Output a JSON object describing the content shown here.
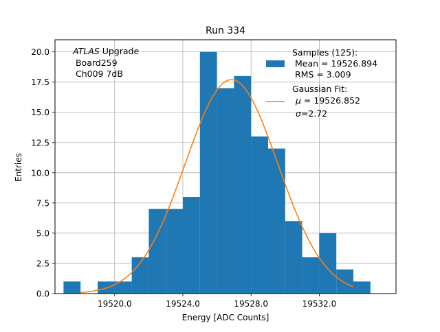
{
  "chart_data": {
    "type": "bar",
    "title": "Run 334",
    "xlabel": "Energy [ADC Counts]",
    "ylabel": "Entries",
    "xlim": [
      19516.5,
      19536.5
    ],
    "ylim": [
      0,
      21
    ],
    "grid": true,
    "x_ticks": [
      {
        "value": 19520,
        "label": "19520.0"
      },
      {
        "value": 19524,
        "label": "19524.0"
      },
      {
        "value": 19528,
        "label": "19528.0"
      },
      {
        "value": 19532,
        "label": "19532.0"
      }
    ],
    "y_ticks": [
      {
        "value": 0,
        "label": "0.0"
      },
      {
        "value": 2.5,
        "label": "2.5"
      },
      {
        "value": 5,
        "label": "5.0"
      },
      {
        "value": 7.5,
        "label": "7.5"
      },
      {
        "value": 10,
        "label": "10.0"
      },
      {
        "value": 12.5,
        "label": "12.5"
      },
      {
        "value": 15,
        "label": "15.0"
      },
      {
        "value": 17.5,
        "label": "17.5"
      },
      {
        "value": 20,
        "label": "20.0"
      }
    ],
    "bins": [
      {
        "x0": 19517.0,
        "x1": 19518.0,
        "count": 1
      },
      {
        "x0": 19518.0,
        "x1": 19519.0,
        "count": 0
      },
      {
        "x0": 19519.0,
        "x1": 19520.0,
        "count": 1
      },
      {
        "x0": 19520.0,
        "x1": 19521.0,
        "count": 1
      },
      {
        "x0": 19521.0,
        "x1": 19522.0,
        "count": 3
      },
      {
        "x0": 19522.0,
        "x1": 19523.0,
        "count": 7
      },
      {
        "x0": 19523.0,
        "x1": 19524.0,
        "count": 7
      },
      {
        "x0": 19524.0,
        "x1": 19525.0,
        "count": 8
      },
      {
        "x0": 19525.0,
        "x1": 19526.0,
        "count": 20
      },
      {
        "x0": 19526.0,
        "x1": 19527.0,
        "count": 17
      },
      {
        "x0": 19527.0,
        "x1": 19528.0,
        "count": 18
      },
      {
        "x0": 19528.0,
        "x1": 19529.0,
        "count": 13
      },
      {
        "x0": 19529.0,
        "x1": 19530.0,
        "count": 12
      },
      {
        "x0": 19530.0,
        "x1": 19531.0,
        "count": 6
      },
      {
        "x0": 19531.0,
        "x1": 19532.0,
        "count": 3
      },
      {
        "x0": 19532.0,
        "x1": 19533.0,
        "count": 5
      },
      {
        "x0": 19533.0,
        "x1": 19534.0,
        "count": 2
      },
      {
        "x0": 19534.0,
        "x1": 19535.0,
        "count": 1
      }
    ],
    "fit": {
      "mu": 19526.852,
      "sigma": 2.72,
      "amplitude": 17.7,
      "x_range": [
        19518.0,
        19534.0
      ]
    },
    "colors": {
      "histogram": "#1f77b4",
      "fit": "#ff7f0e",
      "grid": "#b0b0b0"
    },
    "annotation": {
      "atlas": "ATLAS",
      "upgrade": " Upgrade",
      "board": " Board259",
      "channel": " Ch009 7dB"
    },
    "legend": {
      "placement": "upper right",
      "samples_title": "Samples (125):",
      "samples_mean": " Mean = 19526.894",
      "samples_rms": " RMS = 3.009",
      "fit_title": "Gaussian Fit:",
      "fit_mu_symbol": "μ",
      "fit_mu_value": " = 19526.852",
      "fit_sigma_symbol": "σ",
      "fit_sigma_value": "=2.72"
    }
  }
}
